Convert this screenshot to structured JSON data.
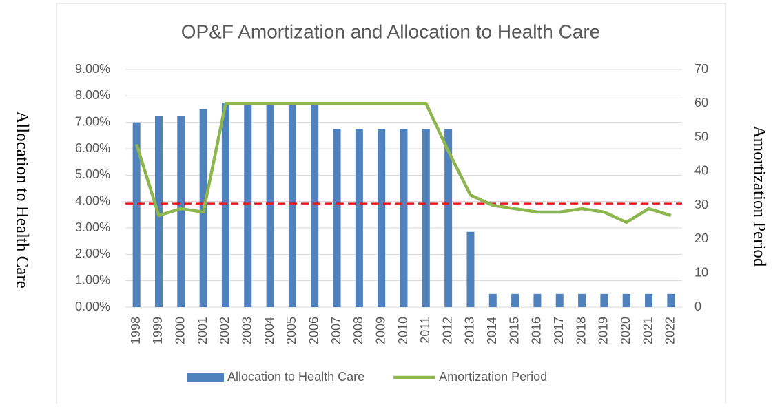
{
  "chart_data": {
    "type": "bar_line",
    "title": "OP&F Amortization and Allocation to Health Care",
    "ylabel": "Allocation to Health Care",
    "y2label": "Amortization Period",
    "categories": [
      "1998",
      "1999",
      "2000",
      "2001",
      "2002",
      "2003",
      "2004",
      "2005",
      "2006",
      "2007",
      "2008",
      "2009",
      "2010",
      "2011",
      "2012",
      "2013",
      "2014",
      "2015",
      "2016",
      "2017",
      "2018",
      "2019",
      "2020",
      "2021",
      "2022"
    ],
    "series": [
      {
        "name": "Allocation to Health Care",
        "type": "bar",
        "color": "#4f81bd",
        "axis": "y",
        "values": [
          7.0,
          7.25,
          7.25,
          7.5,
          7.75,
          7.75,
          7.75,
          7.75,
          7.75,
          6.75,
          6.75,
          6.75,
          6.75,
          6.75,
          6.75,
          2.85,
          0.5,
          0.5,
          0.5,
          0.5,
          0.5,
          0.5,
          0.5,
          0.5,
          0.5
        ]
      },
      {
        "name": "Amortization Period",
        "type": "line",
        "color": "#8db64e",
        "axis": "y2",
        "values": [
          48,
          27,
          29,
          28,
          60,
          60,
          60,
          60,
          60,
          60,
          60,
          60,
          60,
          60,
          46,
          33,
          30,
          29,
          28,
          28,
          29,
          28,
          25,
          29,
          27
        ]
      }
    ],
    "reference_line": {
      "axis": "y2",
      "value": 30.5,
      "color": "#e31a1c",
      "style": "dashed"
    },
    "ylim": [
      0,
      9
    ],
    "yticks": [
      {
        "value": 0,
        "label": "0.00%"
      },
      {
        "value": 1,
        "label": "1.00%"
      },
      {
        "value": 2,
        "label": "2.00%"
      },
      {
        "value": 3,
        "label": "3.00%"
      },
      {
        "value": 4,
        "label": "4.00%"
      },
      {
        "value": 5,
        "label": "5.00%"
      },
      {
        "value": 6,
        "label": "6.00%"
      },
      {
        "value": 7,
        "label": "7.00%"
      },
      {
        "value": 8,
        "label": "8.00%"
      },
      {
        "value": 9,
        "label": "9.00%"
      }
    ],
    "y2lim": [
      0,
      70
    ],
    "y2ticks": [
      0,
      10,
      20,
      30,
      40,
      50,
      60,
      70
    ],
    "grid": true,
    "legend": "bottom"
  }
}
